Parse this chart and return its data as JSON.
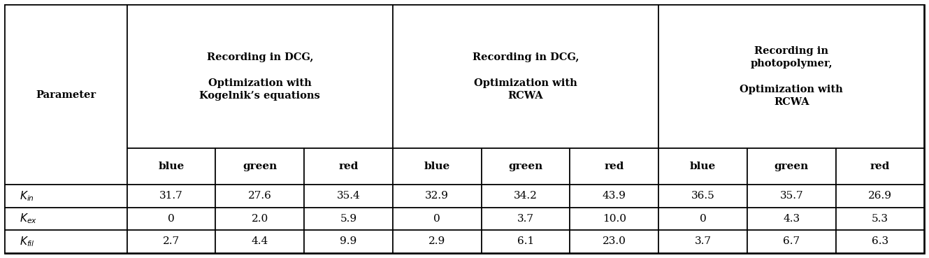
{
  "col_headers": [
    "Parameter",
    "Recording in DCG,\n\nOptimization with\nKogelnik’s equations",
    "Recording in DCG,\n\nOptimization with\nRCWA",
    "Recording in\nphotopolymer,\n\nOptimization with\nRCWA"
  ],
  "sub_headers": [
    "blue",
    "green",
    "red",
    "blue",
    "green",
    "red",
    "blue",
    "green",
    "red"
  ],
  "row_labels_display": [
    "$K_{in}$",
    "$K_{ex}$",
    "$K_{fil}$"
  ],
  "data": [
    [
      "31.7",
      "27.6",
      "35.4",
      "32.9",
      "34.2",
      "43.9",
      "36.5",
      "35.7",
      "26.9"
    ],
    [
      "0",
      "2.0",
      "5.9",
      "0",
      "3.7",
      "10.0",
      "0",
      "4.3",
      "5.3"
    ],
    [
      "2.7",
      "4.4",
      "9.9",
      "2.9",
      "6.1",
      "23.0",
      "3.7",
      "6.7",
      "6.3"
    ]
  ],
  "bg_color": "#ffffff",
  "border_color": "#000000",
  "fontsize_header": 10.5,
  "fontsize_data": 11,
  "fontsize_subheader": 11,
  "fig_width": 13.29,
  "fig_height": 3.69,
  "dpi": 100
}
